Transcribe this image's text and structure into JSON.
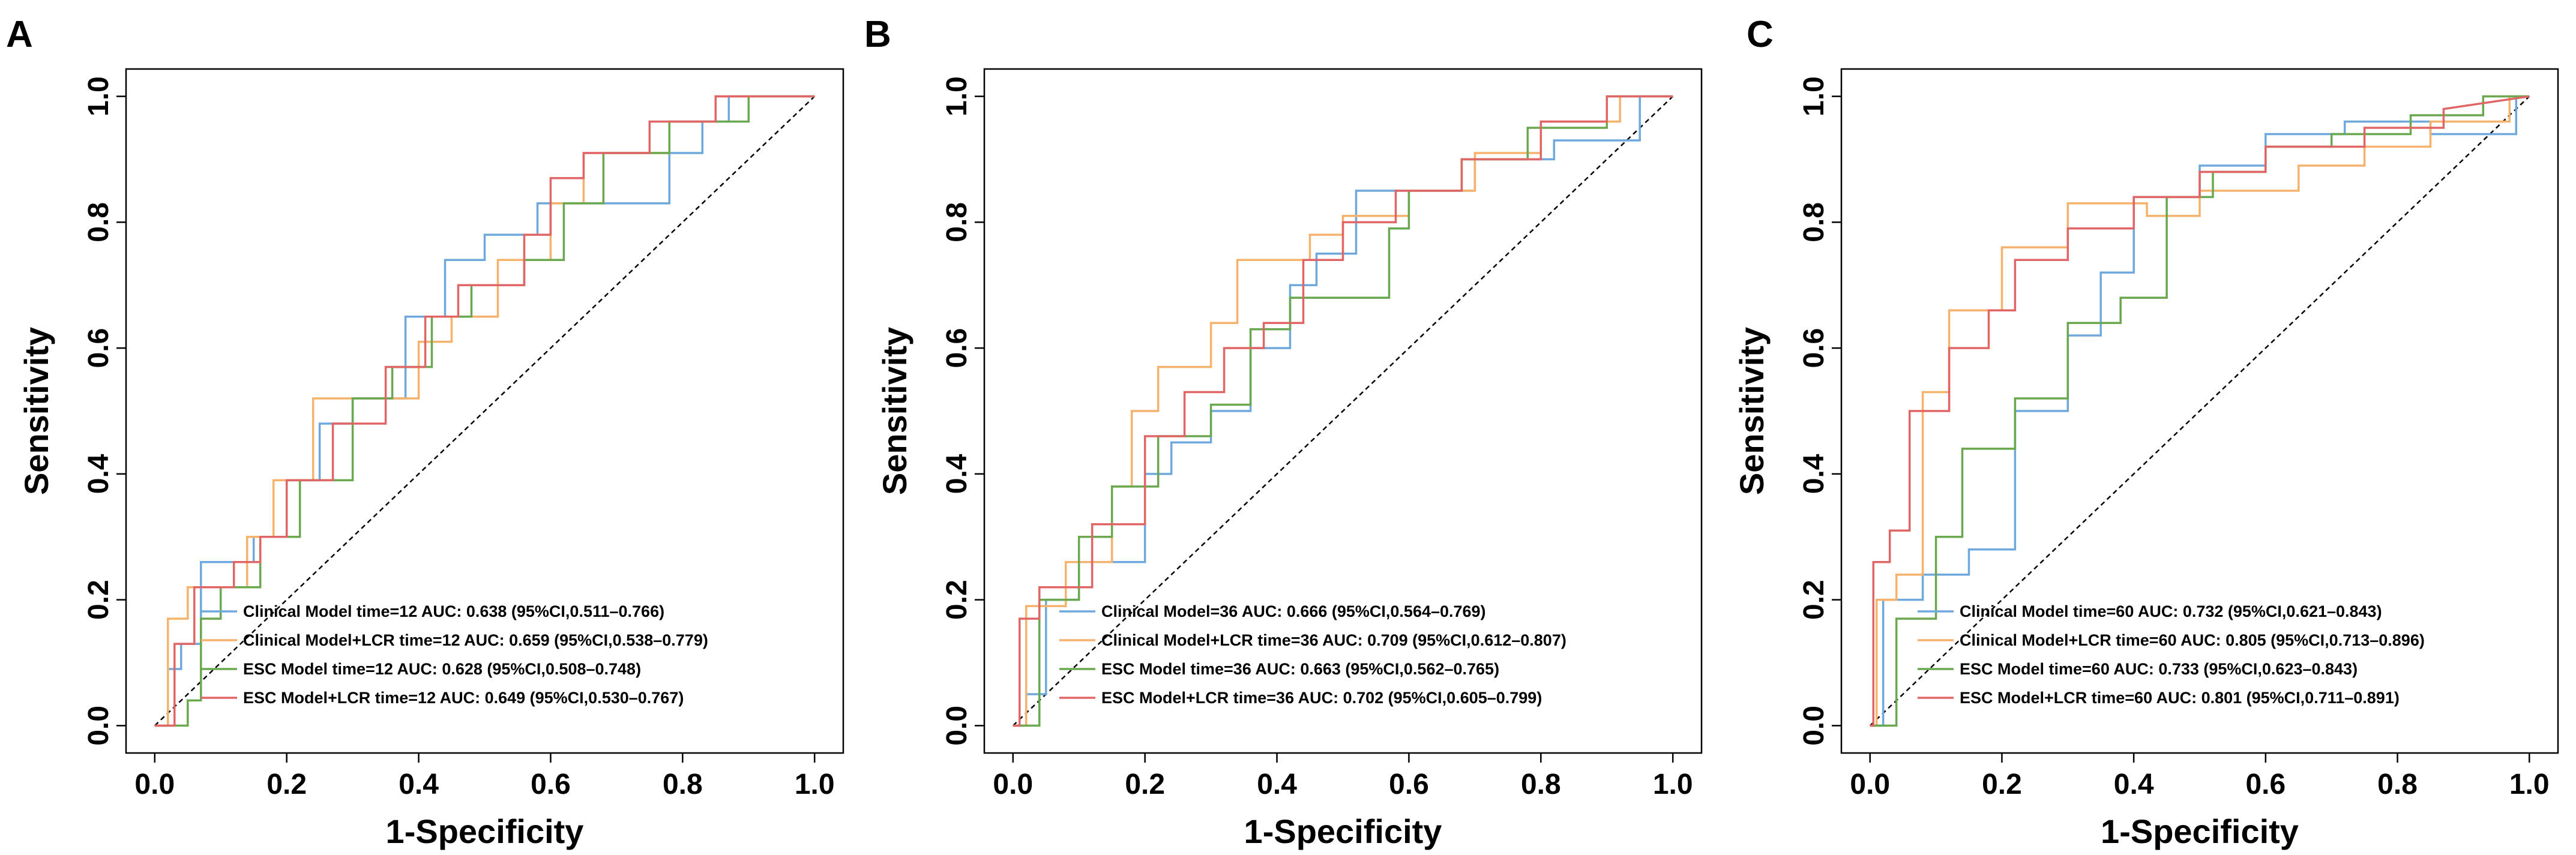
{
  "colors": {
    "blue": "#6fa8dc",
    "orange": "#f6b26b",
    "green": "#6aa84f",
    "red": "#e06666",
    "diagonal": "#000000"
  },
  "chart_data": [
    {
      "type": "line",
      "panel": "A",
      "xlabel": "1-Specificity",
      "ylabel": "Sensitivity",
      "xlim": [
        0,
        1
      ],
      "ylim": [
        0,
        1
      ],
      "x_ticks": [
        "0.0",
        "0.2",
        "0.4",
        "0.6",
        "0.8",
        "1.0"
      ],
      "y_ticks": [
        "0.0",
        "0.2",
        "0.4",
        "0.6",
        "0.8",
        "1.0"
      ],
      "legend_position": "bottom-right",
      "series": [
        {
          "name": "Clinical Model time=12 AUC: 0.638 (95%CI,0.511–0.766)",
          "color": "blue",
          "x": [
            0,
            0.02,
            0.02,
            0.04,
            0.04,
            0.07,
            0.07,
            0.15,
            0.15,
            0.2,
            0.2,
            0.25,
            0.25,
            0.3,
            0.3,
            0.38,
            0.38,
            0.44,
            0.44,
            0.5,
            0.5,
            0.58,
            0.58,
            0.62,
            0.62,
            0.78,
            0.78,
            0.83,
            0.83,
            0.87,
            0.87,
            1
          ],
          "y": [
            0,
            0,
            0.09,
            0.09,
            0.13,
            0.13,
            0.26,
            0.26,
            0.3,
            0.3,
            0.39,
            0.39,
            0.48,
            0.48,
            0.52,
            0.52,
            0.65,
            0.65,
            0.74,
            0.74,
            0.78,
            0.78,
            0.83,
            0.83,
            0.83,
            0.83,
            0.91,
            0.91,
            0.96,
            0.96,
            1,
            1
          ]
        },
        {
          "name": "Clinical Model+LCR time=12 AUC: 0.659 (95%CI,0.538–0.779)",
          "color": "orange",
          "x": [
            0,
            0.02,
            0.02,
            0.05,
            0.05,
            0.09,
            0.09,
            0.14,
            0.14,
            0.18,
            0.18,
            0.24,
            0.24,
            0.3,
            0.3,
            0.4,
            0.4,
            0.45,
            0.45,
            0.52,
            0.52,
            0.6,
            0.6,
            0.65,
            0.65,
            0.78,
            0.78,
            0.85,
            0.85,
            1
          ],
          "y": [
            0,
            0,
            0.17,
            0.17,
            0.22,
            0.22,
            0.22,
            0.22,
            0.3,
            0.3,
            0.39,
            0.39,
            0.52,
            0.52,
            0.52,
            0.52,
            0.61,
            0.61,
            0.65,
            0.65,
            0.74,
            0.74,
            0.83,
            0.83,
            0.91,
            0.91,
            0.96,
            0.96,
            1,
            1
          ]
        },
        {
          "name": "ESC Model time=12 AUC: 0.628 (95%CI,0.508–0.748)",
          "color": "green",
          "x": [
            0,
            0.05,
            0.05,
            0.07,
            0.07,
            0.1,
            0.1,
            0.16,
            0.16,
            0.22,
            0.22,
            0.3,
            0.3,
            0.36,
            0.36,
            0.42,
            0.42,
            0.48,
            0.48,
            0.56,
            0.56,
            0.62,
            0.62,
            0.68,
            0.68,
            0.78,
            0.78,
            0.9,
            0.9,
            1
          ],
          "y": [
            0,
            0,
            0.04,
            0.04,
            0.17,
            0.17,
            0.22,
            0.22,
            0.3,
            0.3,
            0.39,
            0.39,
            0.52,
            0.52,
            0.57,
            0.57,
            0.65,
            0.65,
            0.7,
            0.7,
            0.74,
            0.74,
            0.83,
            0.83,
            0.91,
            0.91,
            0.96,
            0.96,
            1,
            1
          ]
        },
        {
          "name": "ESC Model+LCR time=12 AUC: 0.649 (95%CI,0.530–0.767)",
          "color": "red",
          "x": [
            0,
            0.03,
            0.03,
            0.06,
            0.06,
            0.12,
            0.12,
            0.16,
            0.16,
            0.2,
            0.2,
            0.27,
            0.27,
            0.35,
            0.35,
            0.41,
            0.41,
            0.46,
            0.46,
            0.56,
            0.56,
            0.6,
            0.6,
            0.65,
            0.65,
            0.75,
            0.75,
            0.85,
            0.85,
            1
          ],
          "y": [
            0,
            0,
            0.13,
            0.13,
            0.22,
            0.22,
            0.26,
            0.26,
            0.3,
            0.3,
            0.39,
            0.39,
            0.48,
            0.48,
            0.57,
            0.57,
            0.65,
            0.65,
            0.7,
            0.7,
            0.78,
            0.78,
            0.87,
            0.87,
            0.91,
            0.91,
            0.96,
            0.96,
            1,
            1
          ]
        }
      ]
    },
    {
      "type": "line",
      "panel": "B",
      "xlabel": "1-Specificity",
      "ylabel": "Sensitivity",
      "xlim": [
        0,
        1
      ],
      "ylim": [
        0,
        1
      ],
      "x_ticks": [
        "0.0",
        "0.2",
        "0.4",
        "0.6",
        "0.8",
        "1.0"
      ],
      "y_ticks": [
        "0.0",
        "0.2",
        "0.4",
        "0.6",
        "0.8",
        "1.0"
      ],
      "legend_position": "bottom-right",
      "series": [
        {
          "name": "Clinical Model=36 AUC: 0.666 (95%CI,0.564–0.769)",
          "color": "blue",
          "x": [
            0,
            0.02,
            0.02,
            0.05,
            0.05,
            0.1,
            0.1,
            0.2,
            0.2,
            0.24,
            0.24,
            0.3,
            0.3,
            0.36,
            0.36,
            0.42,
            0.42,
            0.46,
            0.46,
            0.52,
            0.52,
            0.6,
            0.6,
            0.7,
            0.7,
            0.82,
            0.82,
            0.95,
            0.95,
            1
          ],
          "y": [
            0,
            0,
            0.05,
            0.05,
            0.2,
            0.2,
            0.26,
            0.26,
            0.4,
            0.4,
            0.45,
            0.45,
            0.5,
            0.5,
            0.6,
            0.6,
            0.7,
            0.7,
            0.75,
            0.75,
            0.85,
            0.85,
            0.85,
            0.85,
            0.9,
            0.9,
            0.93,
            0.93,
            1,
            1
          ]
        },
        {
          "name": "Clinical Model+LCR time=36 AUC: 0.709 (95%CI,0.612–0.807)",
          "color": "orange",
          "x": [
            0,
            0.02,
            0.02,
            0.08,
            0.08,
            0.15,
            0.15,
            0.18,
            0.18,
            0.22,
            0.22,
            0.3,
            0.3,
            0.34,
            0.34,
            0.45,
            0.45,
            0.5,
            0.5,
            0.6,
            0.6,
            0.7,
            0.7,
            0.8,
            0.8,
            0.92,
            0.92,
            1
          ],
          "y": [
            0,
            0,
            0.19,
            0.19,
            0.26,
            0.26,
            0.38,
            0.38,
            0.5,
            0.5,
            0.57,
            0.57,
            0.64,
            0.64,
            0.74,
            0.74,
            0.78,
            0.78,
            0.81,
            0.81,
            0.85,
            0.85,
            0.91,
            0.91,
            0.96,
            0.96,
            1,
            1
          ]
        },
        {
          "name": "ESC Model time=36 AUC: 0.663 (95%CI,0.562–0.765)",
          "color": "green",
          "x": [
            0,
            0.04,
            0.04,
            0.1,
            0.1,
            0.15,
            0.15,
            0.22,
            0.22,
            0.3,
            0.3,
            0.36,
            0.36,
            0.42,
            0.42,
            0.57,
            0.57,
            0.6,
            0.6,
            0.68,
            0.68,
            0.78,
            0.78,
            0.9,
            0.9,
            1
          ],
          "y": [
            0,
            0,
            0.2,
            0.2,
            0.3,
            0.3,
            0.38,
            0.38,
            0.46,
            0.46,
            0.51,
            0.51,
            0.63,
            0.63,
            0.68,
            0.68,
            0.79,
            0.79,
            0.85,
            0.85,
            0.9,
            0.9,
            0.95,
            0.95,
            1,
            1
          ]
        },
        {
          "name": "ESC Model+LCR time=36 AUC: 0.702 (95%CI,0.605–0.799)",
          "color": "red",
          "x": [
            0,
            0.01,
            0.01,
            0.04,
            0.04,
            0.12,
            0.12,
            0.2,
            0.2,
            0.26,
            0.26,
            0.32,
            0.32,
            0.38,
            0.38,
            0.44,
            0.44,
            0.5,
            0.5,
            0.58,
            0.58,
            0.68,
            0.68,
            0.8,
            0.8,
            0.9,
            0.9,
            1
          ],
          "y": [
            0,
            0,
            0.17,
            0.17,
            0.22,
            0.22,
            0.32,
            0.32,
            0.46,
            0.46,
            0.53,
            0.53,
            0.6,
            0.6,
            0.64,
            0.64,
            0.74,
            0.74,
            0.8,
            0.8,
            0.85,
            0.85,
            0.9,
            0.9,
            0.96,
            0.96,
            1,
            1
          ]
        }
      ]
    },
    {
      "type": "line",
      "panel": "C",
      "xlabel": "1-Specificity",
      "ylabel": "Sensitivity",
      "xlim": [
        0,
        1
      ],
      "ylim": [
        0,
        1
      ],
      "x_ticks": [
        "0.0",
        "0.2",
        "0.4",
        "0.6",
        "0.8",
        "1.0"
      ],
      "y_ticks": [
        "0.0",
        "0.2",
        "0.4",
        "0.6",
        "0.8",
        "1.0"
      ],
      "legend_position": "bottom-right",
      "series": [
        {
          "name": "Clinical Model time=60 AUC: 0.732 (95%CI,0.621–0.843)",
          "color": "blue",
          "x": [
            0,
            0.02,
            0.02,
            0.08,
            0.08,
            0.15,
            0.15,
            0.22,
            0.22,
            0.3,
            0.3,
            0.35,
            0.35,
            0.4,
            0.4,
            0.5,
            0.5,
            0.6,
            0.6,
            0.72,
            0.72,
            0.85,
            0.85,
            0.98,
            0.98,
            1
          ],
          "y": [
            0,
            0,
            0.2,
            0.2,
            0.24,
            0.24,
            0.28,
            0.28,
            0.5,
            0.5,
            0.62,
            0.62,
            0.72,
            0.72,
            0.84,
            0.84,
            0.89,
            0.89,
            0.94,
            0.94,
            0.96,
            0.96,
            0.94,
            0.94,
            1,
            1
          ]
        },
        {
          "name": "Clinical Model+LCR time=60 AUC: 0.805 (95%CI,0.713–0.896)",
          "color": "orange",
          "x": [
            0,
            0.01,
            0.01,
            0.04,
            0.04,
            0.08,
            0.08,
            0.12,
            0.12,
            0.2,
            0.2,
            0.3,
            0.3,
            0.42,
            0.42,
            0.5,
            0.5,
            0.65,
            0.65,
            0.75,
            0.75,
            0.85,
            0.85,
            0.97,
            0.97,
            1
          ],
          "y": [
            0,
            0,
            0.2,
            0.2,
            0.24,
            0.24,
            0.53,
            0.53,
            0.66,
            0.66,
            0.76,
            0.76,
            0.83,
            0.83,
            0.81,
            0.81,
            0.85,
            0.85,
            0.89,
            0.89,
            0.92,
            0.92,
            0.96,
            0.96,
            1,
            1
          ]
        },
        {
          "name": "ESC Model time=60 AUC: 0.733 (95%CI,0.623–0.843)",
          "color": "green",
          "x": [
            0,
            0.04,
            0.04,
            0.1,
            0.1,
            0.14,
            0.14,
            0.22,
            0.22,
            0.3,
            0.3,
            0.38,
            0.38,
            0.45,
            0.45,
            0.52,
            0.52,
            0.6,
            0.6,
            0.7,
            0.7,
            0.82,
            0.82,
            0.93,
            0.93,
            1
          ],
          "y": [
            0,
            0,
            0.17,
            0.17,
            0.3,
            0.3,
            0.44,
            0.44,
            0.52,
            0.52,
            0.64,
            0.64,
            0.68,
            0.68,
            0.84,
            0.84,
            0.88,
            0.88,
            0.92,
            0.92,
            0.94,
            0.94,
            0.97,
            0.97,
            1,
            1
          ]
        },
        {
          "name": "ESC Model+LCR time=60 AUC: 0.801 (95%CI,0.711–0.891)",
          "color": "red",
          "x": [
            0,
            0.005,
            0.005,
            0.03,
            0.03,
            0.06,
            0.06,
            0.12,
            0.12,
            0.18,
            0.18,
            0.22,
            0.22,
            0.3,
            0.3,
            0.4,
            0.4,
            0.5,
            0.5,
            0.6,
            0.6,
            0.75,
            0.75,
            0.87,
            0.87,
            1
          ],
          "y": [
            0,
            0,
            0.26,
            0.26,
            0.31,
            0.31,
            0.5,
            0.5,
            0.6,
            0.6,
            0.66,
            0.66,
            0.74,
            0.74,
            0.79,
            0.79,
            0.84,
            0.84,
            0.88,
            0.88,
            0.92,
            0.92,
            0.95,
            0.95,
            0.98,
            1
          ]
        }
      ]
    }
  ]
}
